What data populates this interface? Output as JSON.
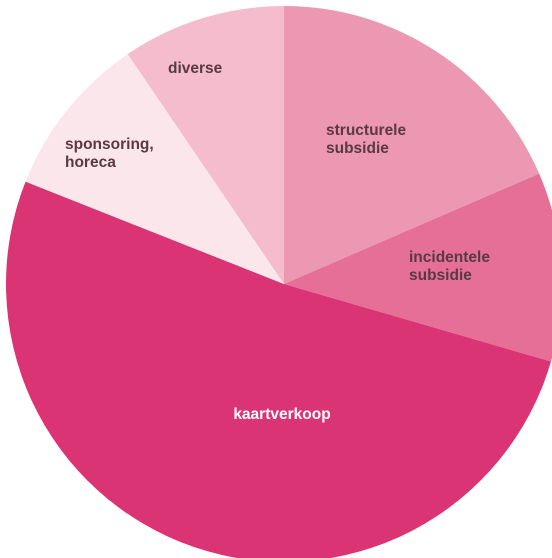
{
  "chart_data": {
    "type": "pie",
    "title": "",
    "start_angle_deg": 0,
    "direction": "clockwise",
    "slices": [
      {
        "label": "structurele subsidie",
        "value": 18.5,
        "color": "#ec98b2",
        "label_color": "#5a3a42"
      },
      {
        "label": "incidentele subsidie",
        "value": 11.0,
        "color": "#e56f97",
        "label_color": "#5a3a42"
      },
      {
        "label": "kaartverkoop",
        "value": 51.5,
        "color": "#db3474",
        "label_color": "#ffffff"
      },
      {
        "label": "sponsoring, horeca",
        "value": 9.5,
        "color": "#fbe6eb",
        "label_color": "#5a3a42"
      },
      {
        "label": "diverse",
        "value": 9.5,
        "color": "#f4bccd",
        "label_color": "#5a3a42"
      }
    ]
  }
}
